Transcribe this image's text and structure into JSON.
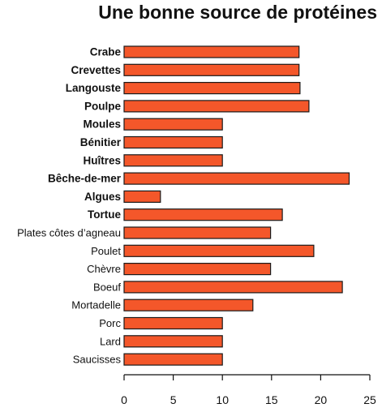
{
  "chart_data": {
    "type": "bar",
    "orientation": "horizontal",
    "title": "Une bonne source de protéines",
    "xlabel": "",
    "ylabel": "",
    "categories": [
      "Crabe",
      "Crevettes",
      "Langouste",
      "Poulpe",
      "Moules",
      "Bénitier",
      "Huîtres",
      "Bêche-de-mer",
      "Algues",
      "Tortue",
      "Plates côtes d’agneau",
      "Poulet",
      "Chèvre",
      "Boeuf",
      "Mortadelle",
      "Porc",
      "Lard",
      "Saucisses"
    ],
    "bold_categories": [
      "Crabe",
      "Crevettes",
      "Langouste",
      "Poulpe",
      "Moules",
      "Bénitier",
      "Huîtres",
      "Bêche-de-mer",
      "Algues",
      "Tortue"
    ],
    "values": [
      17.8,
      17.8,
      17.9,
      18.8,
      10.0,
      10.0,
      10.0,
      22.9,
      3.7,
      16.1,
      14.9,
      19.3,
      14.9,
      22.2,
      13.1,
      10.0,
      10.0,
      10.0
    ],
    "xlim": [
      0,
      25
    ],
    "xticks": [
      "0",
      "5",
      "10",
      "15",
      "20",
      "25"
    ],
    "grid": false,
    "bar_color": "#f4572a",
    "bar_edge_color": "#1a1a1a"
  }
}
